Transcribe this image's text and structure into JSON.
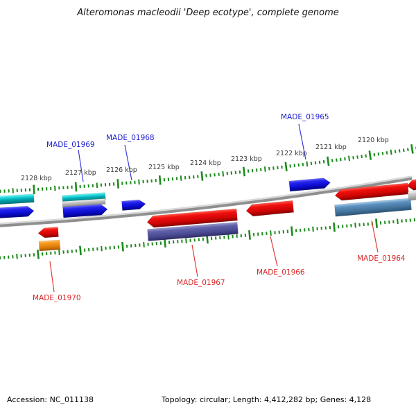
{
  "title": "Alteromonas macleodii 'Deep ecotype', complete genome",
  "footer": {
    "accession": "Accession: NC_011138",
    "stats": "Topology: circular; Length: 4,412,282 bp; Genes: 4,128"
  },
  "ruler": {
    "unit": "kbp",
    "tick_color": "#1c8a1c",
    "labels": [
      "2128 kbp",
      "2127 kbp",
      "2126 kbp",
      "2125 kbp",
      "2124 kbp",
      "2123 kbp",
      "2122 kbp",
      "2121 kbp",
      "2120 kbp"
    ]
  },
  "backbone_color": "#909090",
  "palette": {
    "cyan": "#00b0b8",
    "blue": "#1212dd",
    "gray": "#bfbfbf",
    "red": "#e20b0b",
    "orange": "#f08a14",
    "slate": "#50509b",
    "steel": "#4e86b4"
  },
  "label_colors": {
    "forward": "#2020cf",
    "reverse": "#d82727"
  },
  "genes": [
    {
      "color": "cyan",
      "strand": "forward",
      "direction": "none"
    },
    {
      "color": "blue",
      "strand": "forward",
      "direction": "right"
    },
    {
      "color": "cyan",
      "strand": "forward",
      "direction": "none"
    },
    {
      "color": "gray",
      "strand": "forward",
      "direction": "none"
    },
    {
      "color": "blue",
      "strand": "forward",
      "direction": "right"
    },
    {
      "color": "blue",
      "strand": "forward",
      "direction": "right"
    },
    {
      "color": "blue",
      "strand": "forward",
      "direction": "right"
    },
    {
      "color": "red",
      "strand": "reverse",
      "direction": "left"
    },
    {
      "color": "orange",
      "strand": "reverse",
      "direction": "none"
    },
    {
      "color": "red",
      "strand": "reverse",
      "direction": "left"
    },
    {
      "color": "slate",
      "strand": "reverse",
      "direction": "none"
    },
    {
      "color": "red",
      "strand": "reverse",
      "direction": "left"
    },
    {
      "color": "red",
      "strand": "reverse",
      "direction": "left"
    },
    {
      "color": "steel",
      "strand": "reverse",
      "direction": "none"
    },
    {
      "color": "red",
      "strand": "reverse",
      "direction": "left"
    },
    {
      "color": "gray",
      "strand": "reverse",
      "direction": "none"
    }
  ],
  "gene_labels": [
    {
      "text": "MADE_01969",
      "side": "forward"
    },
    {
      "text": "MADE_01968",
      "side": "forward"
    },
    {
      "text": "MADE_01965",
      "side": "forward"
    },
    {
      "text": "MADE_01970",
      "side": "reverse"
    },
    {
      "text": "MADE_01967",
      "side": "reverse"
    },
    {
      "text": "MADE_01966",
      "side": "reverse"
    },
    {
      "text": "MADE_01964",
      "side": "reverse"
    }
  ]
}
